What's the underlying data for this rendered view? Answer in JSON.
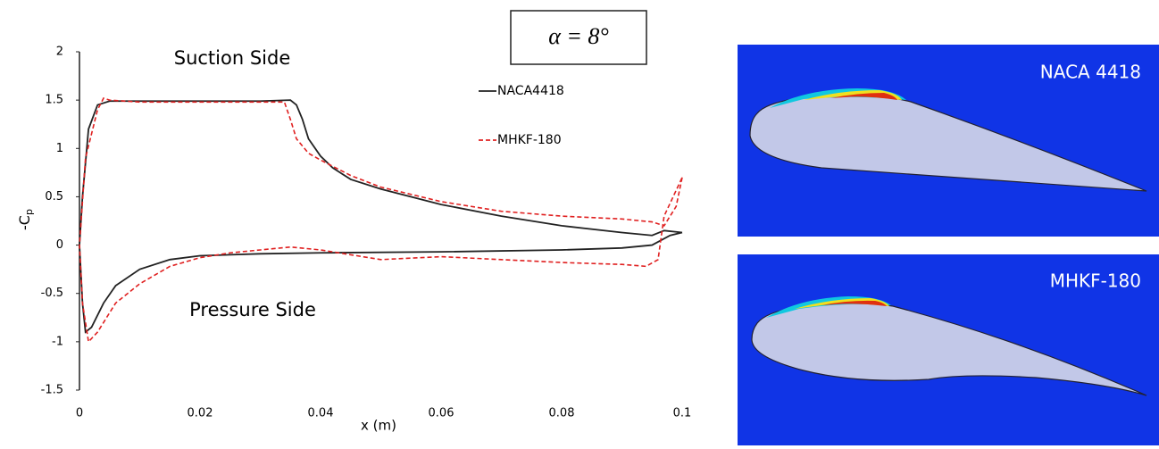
{
  "chart_data": {
    "type": "line",
    "x_label": "x (m)",
    "y_label": "-C",
    "y_label_subscript": "p",
    "annotations": [
      "Suction Side",
      "Pressure Side",
      "α = 8°"
    ],
    "xlim": [
      0,
      0.1
    ],
    "xticks": [
      0,
      0.02,
      0.04,
      0.06,
      0.08,
      0.1
    ],
    "ylim": [
      -1.5,
      2
    ],
    "yticks": [
      2,
      1.5,
      1,
      0.5,
      0,
      -0.5,
      -1,
      -1.5
    ],
    "grid": false,
    "series": [
      {
        "name": "NACA4418",
        "color": "#222222",
        "dash": false,
        "x": [
          0.1,
          0.097,
          0.095,
          0.09,
          0.08,
          0.07,
          0.06,
          0.05,
          0.045,
          0.042,
          0.04,
          0.038,
          0.037,
          0.036,
          0.035,
          0.03,
          0.02,
          0.01,
          0.005,
          0.003,
          0.0015,
          0.0005,
          0,
          0.0005,
          0.001,
          0.002,
          0.004,
          0.006,
          0.01,
          0.015,
          0.02,
          0.03,
          0.04,
          0.06,
          0.08,
          0.09,
          0.095,
          0.098,
          0.1
        ],
        "values": [
          0.13,
          0.15,
          0.1,
          0.13,
          0.2,
          0.3,
          0.42,
          0.58,
          0.68,
          0.8,
          0.92,
          1.1,
          1.3,
          1.45,
          1.5,
          1.49,
          1.49,
          1.49,
          1.49,
          1.45,
          1.2,
          0.5,
          0,
          -0.6,
          -0.9,
          -0.85,
          -0.6,
          -0.42,
          -0.25,
          -0.15,
          -0.11,
          -0.09,
          -0.08,
          -0.07,
          -0.05,
          -0.03,
          0,
          0.1,
          0.13
        ]
      },
      {
        "name": "MHKF-180",
        "color": "#e02020",
        "dash": true,
        "x": [
          0.1,
          0.099,
          0.097,
          0.095,
          0.09,
          0.08,
          0.07,
          0.06,
          0.05,
          0.045,
          0.04,
          0.038,
          0.036,
          0.035,
          0.034,
          0.03,
          0.02,
          0.01,
          0.005,
          0.004,
          0.003,
          0.001,
          0,
          0.0005,
          0.0015,
          0.003,
          0.006,
          0.01,
          0.015,
          0.02,
          0.025,
          0.03,
          0.035,
          0.04,
          0.045,
          0.05,
          0.06,
          0.07,
          0.08,
          0.09,
          0.094,
          0.096,
          0.097,
          0.1
        ],
        "values": [
          0.7,
          0.4,
          0.2,
          0.24,
          0.27,
          0.3,
          0.35,
          0.45,
          0.6,
          0.72,
          0.88,
          0.95,
          1.1,
          1.3,
          1.48,
          1.48,
          1.48,
          1.48,
          1.5,
          1.52,
          1.4,
          0.9,
          0,
          -0.6,
          -1.0,
          -0.9,
          -0.6,
          -0.4,
          -0.22,
          -0.13,
          -0.08,
          -0.05,
          -0.02,
          -0.05,
          -0.1,
          -0.15,
          -0.12,
          -0.15,
          -0.18,
          -0.2,
          -0.22,
          -0.15,
          0.3,
          0.7
        ]
      }
    ]
  },
  "panels": [
    {
      "label": "NACA 4418"
    },
    {
      "label": "MHKF-180"
    }
  ]
}
